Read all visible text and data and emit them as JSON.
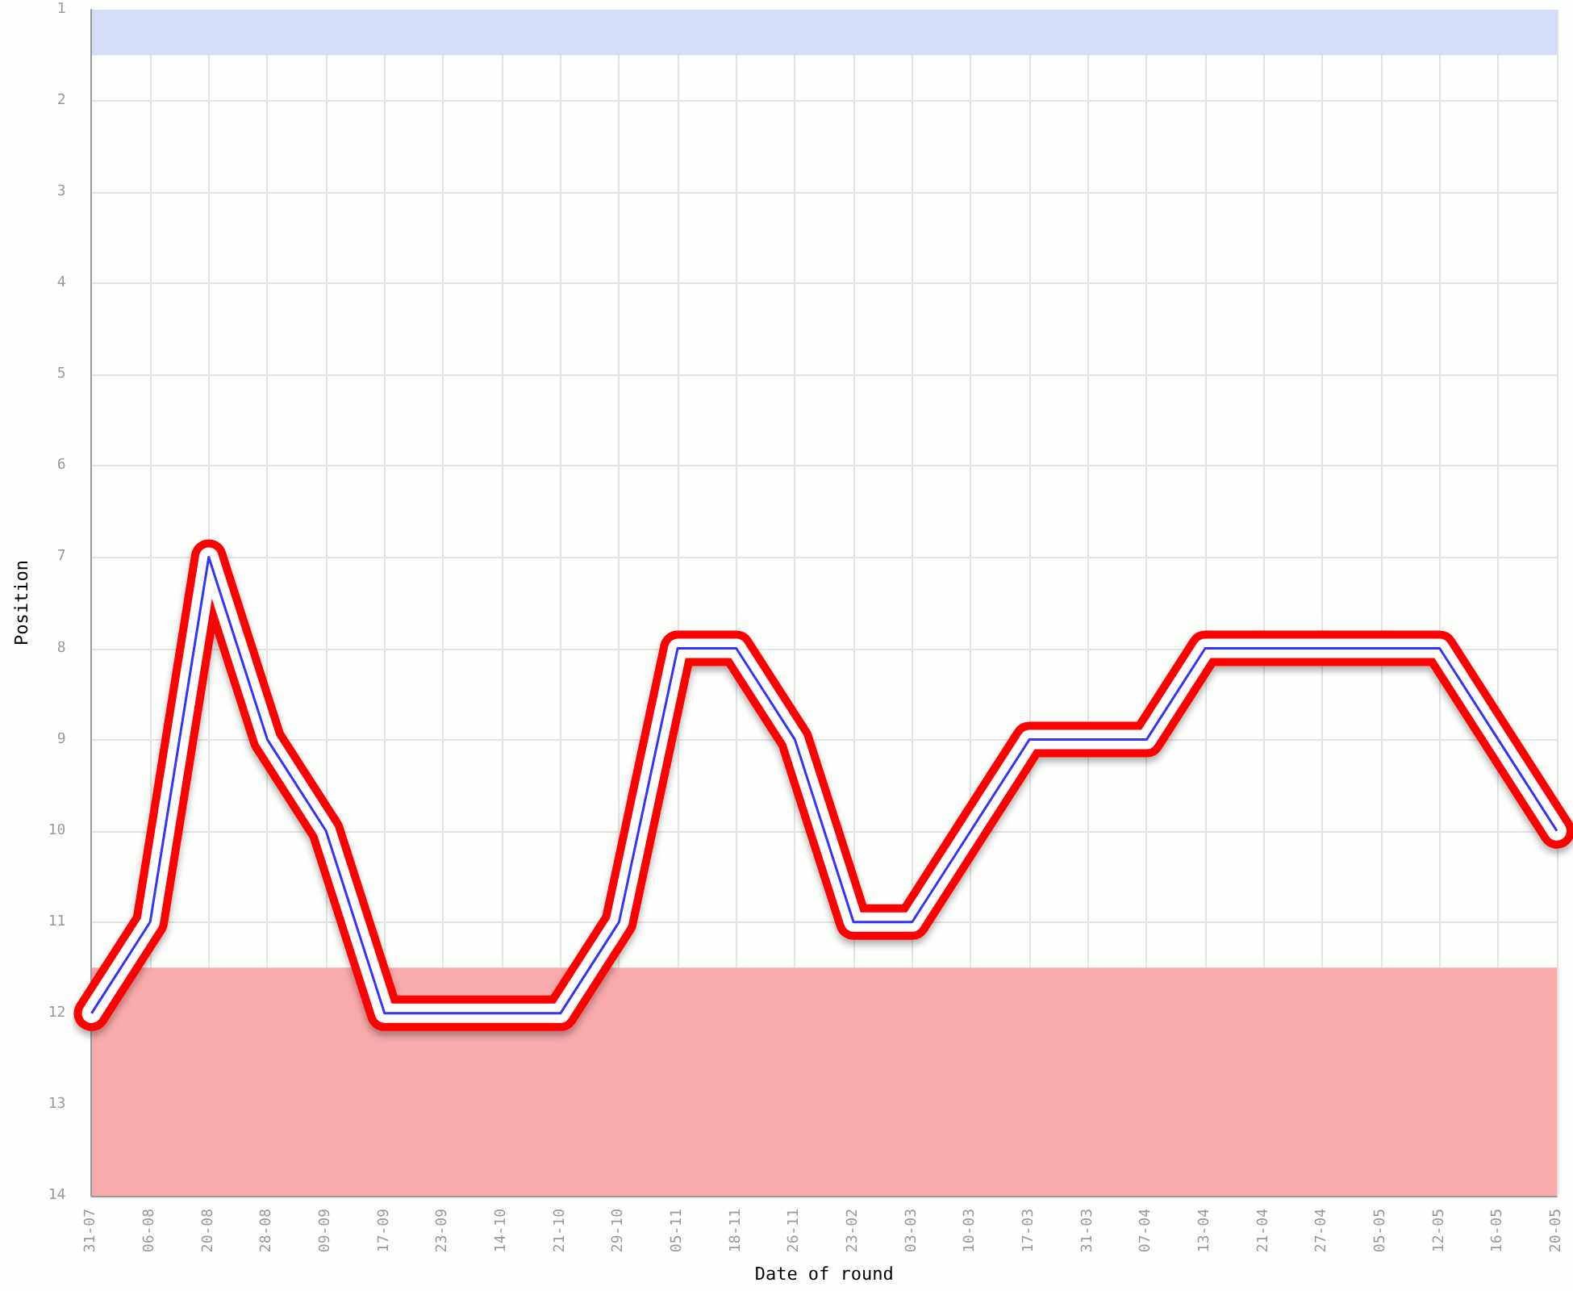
{
  "chart_data": {
    "type": "line",
    "xlabel": "Date of round",
    "ylabel": "Position",
    "categories": [
      "31-07",
      "06-08",
      "20-08",
      "28-08",
      "09-09",
      "17-09",
      "23-09",
      "14-10",
      "21-10",
      "29-10",
      "05-11",
      "18-11",
      "26-11",
      "23-02",
      "03-03",
      "10-03",
      "17-03",
      "31-03",
      "07-04",
      "13-04",
      "21-04",
      "27-04",
      "05-05",
      "12-05",
      "16-05",
      "20-05"
    ],
    "series": [
      {
        "color": "#3333ff",
        "values": [
          12,
          11,
          7,
          9,
          10,
          12,
          12,
          12,
          12,
          11,
          8,
          8,
          9,
          11,
          11,
          10,
          9,
          9,
          9,
          8,
          8,
          8,
          8,
          8,
          9,
          10
        ]
      }
    ],
    "ylim": [
      14,
      1
    ],
    "yticks": [
      1,
      2,
      3,
      4,
      5,
      6,
      7,
      8,
      9,
      10,
      11,
      12,
      13,
      14
    ],
    "bands": [
      {
        "axis": "y",
        "from": 1,
        "to": 1.5,
        "color": "#d5dcf7"
      },
      {
        "axis": "y",
        "from": 11.5,
        "to": 14,
        "color": "#f9aaaa"
      }
    ],
    "grid": true,
    "marker": "none",
    "line_style": "solid"
  }
}
